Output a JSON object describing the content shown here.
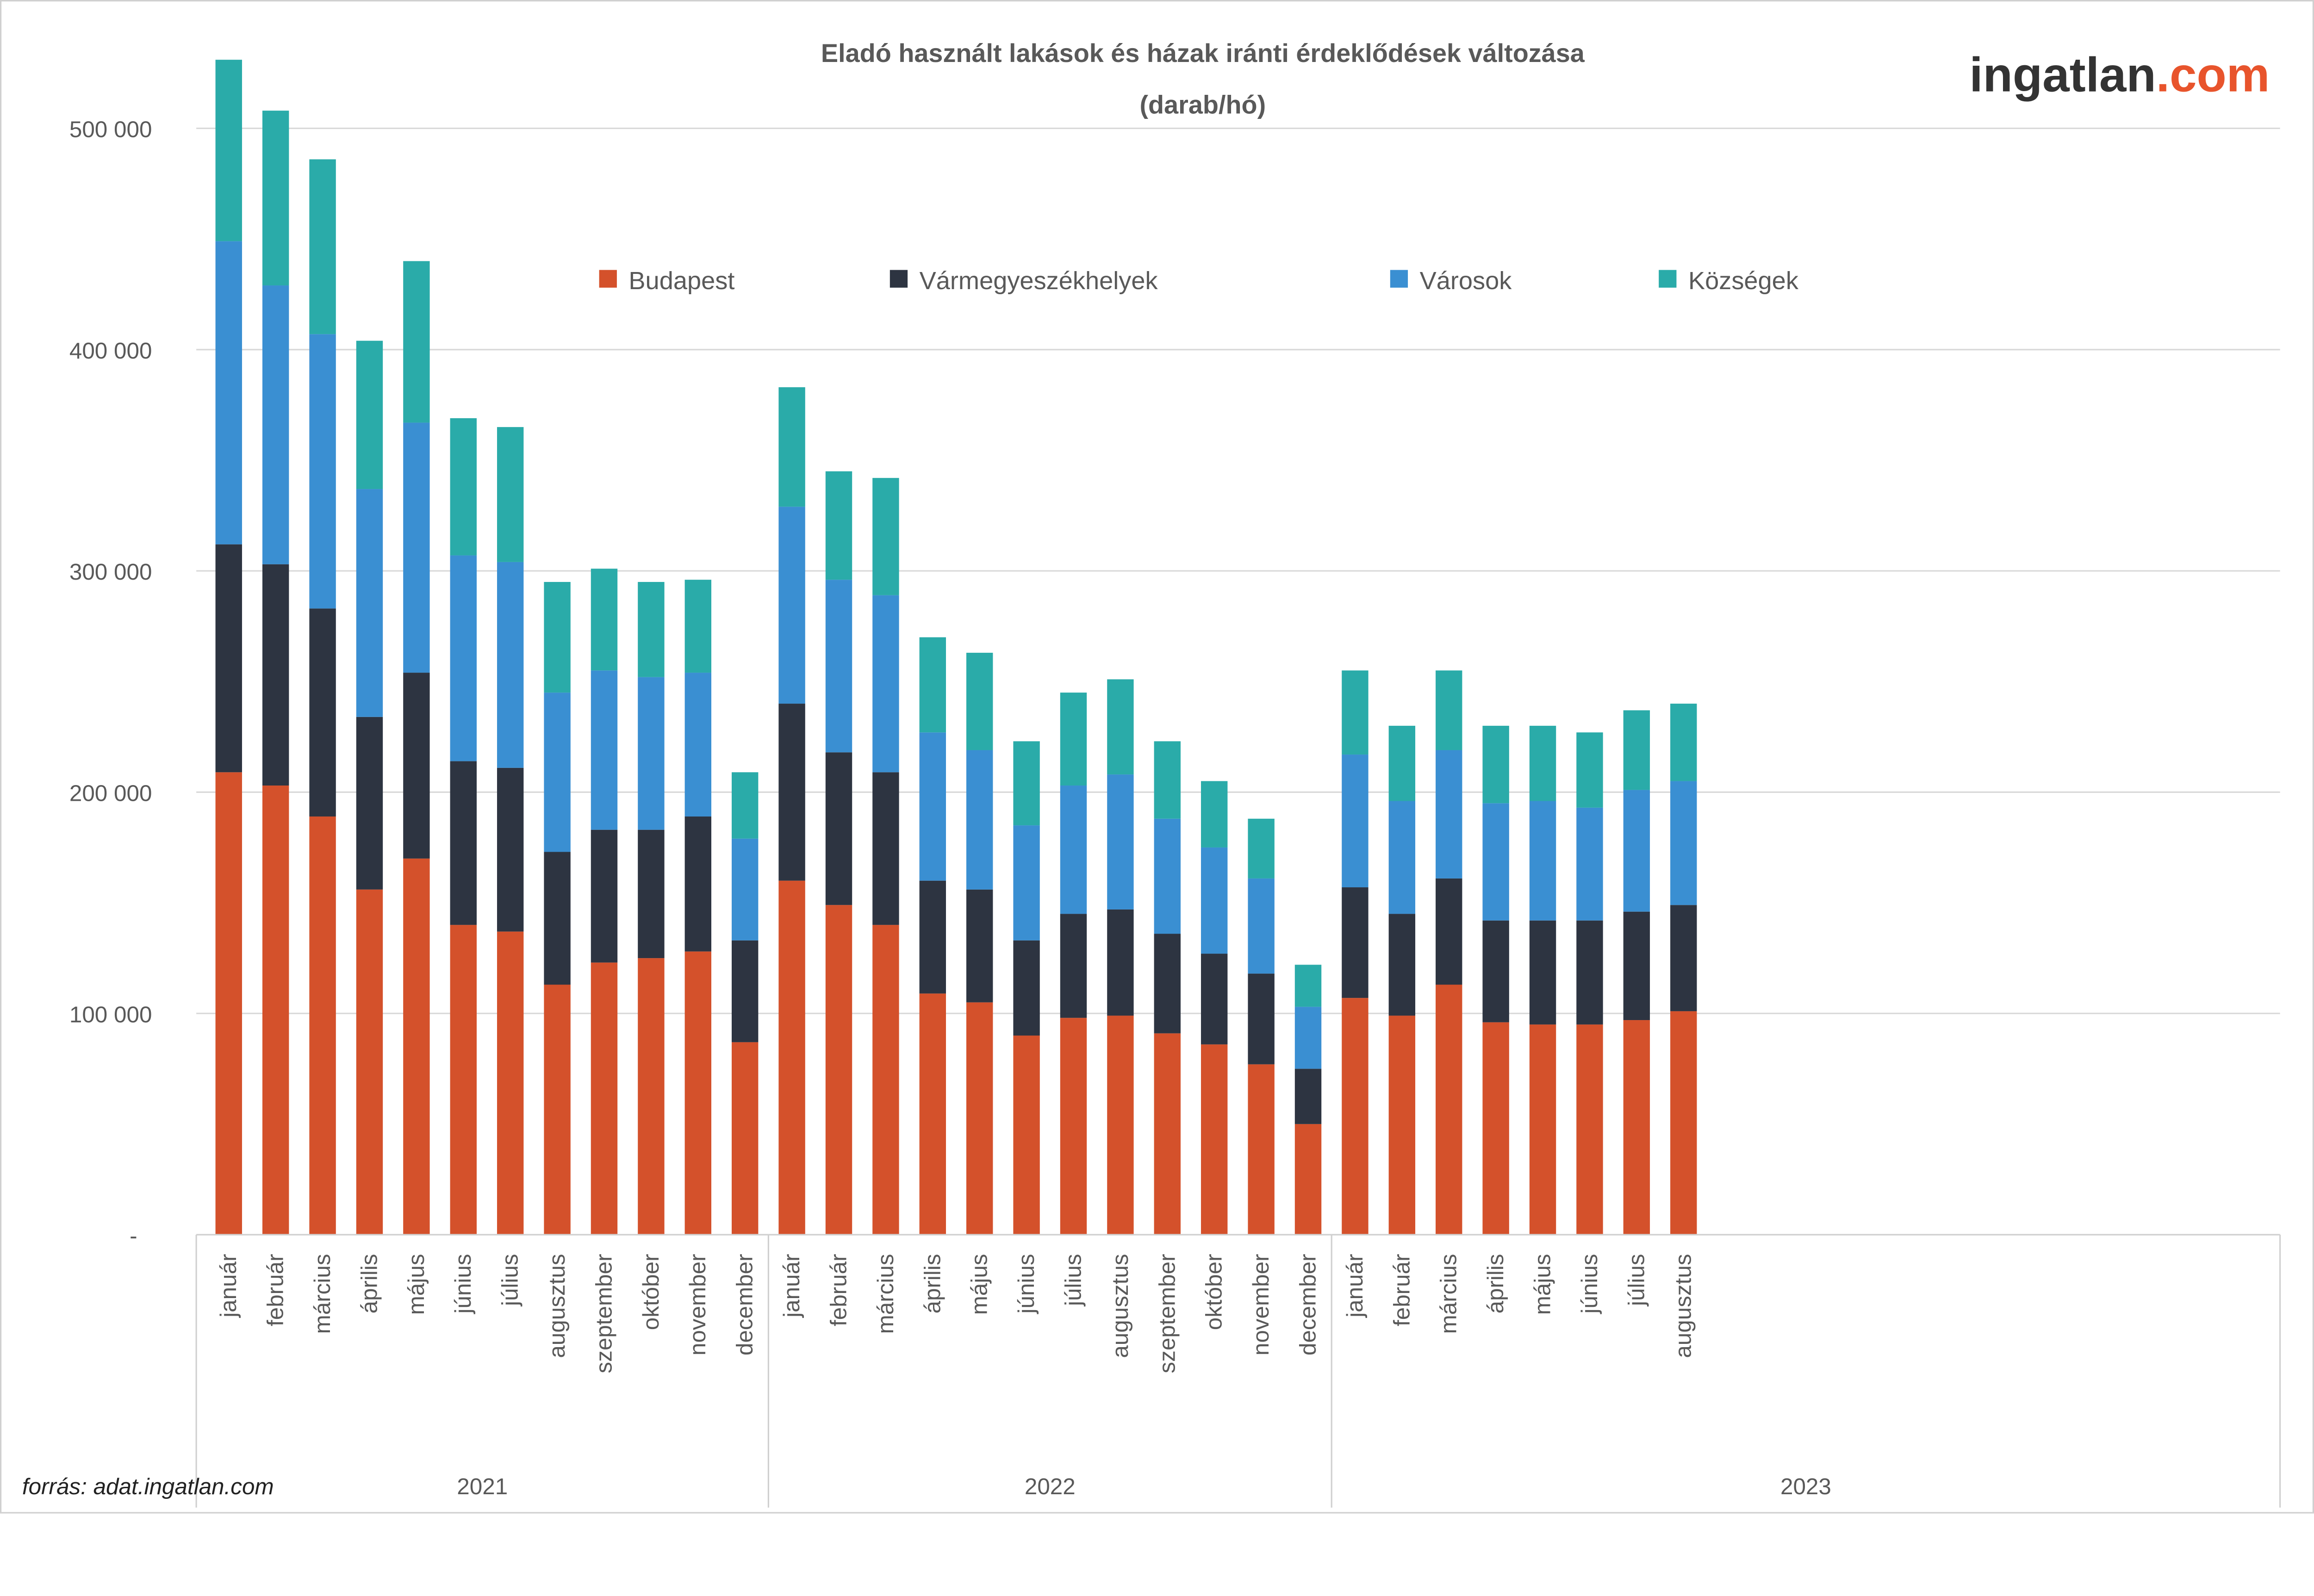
{
  "logo": {
    "part1": "ingatlan",
    "part2": ".com",
    "colors": {
      "part1": "#333333",
      "part2": "#E8542C"
    }
  },
  "source": "forrás: adat.ingatlan.com",
  "chart_data": {
    "type": "bar",
    "stacked": true,
    "title": "Eladó használt lakások és házak iránti érdeklődések változása",
    "subtitle": "(darab/hó)",
    "xlabel": "",
    "ylabel": "",
    "ylim": [
      0,
      530000
    ],
    "y_ticks": [
      0,
      100000,
      200000,
      300000,
      400000,
      500000
    ],
    "y_tick_labels": [
      "-",
      "100 000",
      "200 000",
      "300 000",
      "400 000",
      "500 000"
    ],
    "grid": true,
    "legend_position": "top",
    "years": [
      {
        "label": "2021",
        "count": 12
      },
      {
        "label": "2022",
        "count": 12
      },
      {
        "label": "2023",
        "count": 8
      }
    ],
    "categories": [
      "január",
      "február",
      "március",
      "április",
      "május",
      "június",
      "július",
      "augusztus",
      "szeptember",
      "október",
      "november",
      "december",
      "január",
      "február",
      "március",
      "április",
      "május",
      "június",
      "július",
      "augusztus",
      "szeptember",
      "október",
      "november",
      "december",
      "január",
      "február",
      "március",
      "április",
      "május",
      "június",
      "július",
      "augusztus"
    ],
    "series": [
      {
        "name": "Budapest",
        "color": "#D4512B",
        "values": [
          209000,
          203000,
          189000,
          156000,
          170000,
          140000,
          137000,
          113000,
          123000,
          125000,
          128000,
          87000,
          160000,
          149000,
          140000,
          109000,
          105000,
          90000,
          98000,
          99000,
          91000,
          86000,
          77000,
          50000,
          107000,
          99000,
          113000,
          96000,
          95000,
          95000,
          97000,
          101000
        ]
      },
      {
        "name": "Vármegyeszékhelyek",
        "color": "#2D3441",
        "values": [
          103000,
          100000,
          94000,
          78000,
          84000,
          74000,
          74000,
          60000,
          60000,
          58000,
          61000,
          46000,
          80000,
          69000,
          69000,
          51000,
          51000,
          43000,
          47000,
          48000,
          45000,
          41000,
          41000,
          25000,
          50000,
          46000,
          48000,
          46000,
          47000,
          47000,
          49000,
          48000
        ]
      },
      {
        "name": "Városok",
        "color": "#3A8FD2",
        "values": [
          137000,
          126000,
          124000,
          103000,
          113000,
          93000,
          93000,
          72000,
          72000,
          69000,
          65000,
          46000,
          89000,
          78000,
          80000,
          67000,
          63000,
          52000,
          58000,
          61000,
          52000,
          48000,
          43000,
          28000,
          60000,
          51000,
          58000,
          53000,
          54000,
          51000,
          55000,
          56000
        ]
      },
      {
        "name": "Községek",
        "color": "#2AABA9",
        "values": [
          82000,
          79000,
          79000,
          67000,
          73000,
          62000,
          61000,
          50000,
          46000,
          43000,
          42000,
          30000,
          54000,
          49000,
          53000,
          43000,
          44000,
          38000,
          42000,
          43000,
          35000,
          30000,
          27000,
          19000,
          38000,
          34000,
          36000,
          35000,
          34000,
          34000,
          36000,
          35000
        ]
      }
    ]
  }
}
